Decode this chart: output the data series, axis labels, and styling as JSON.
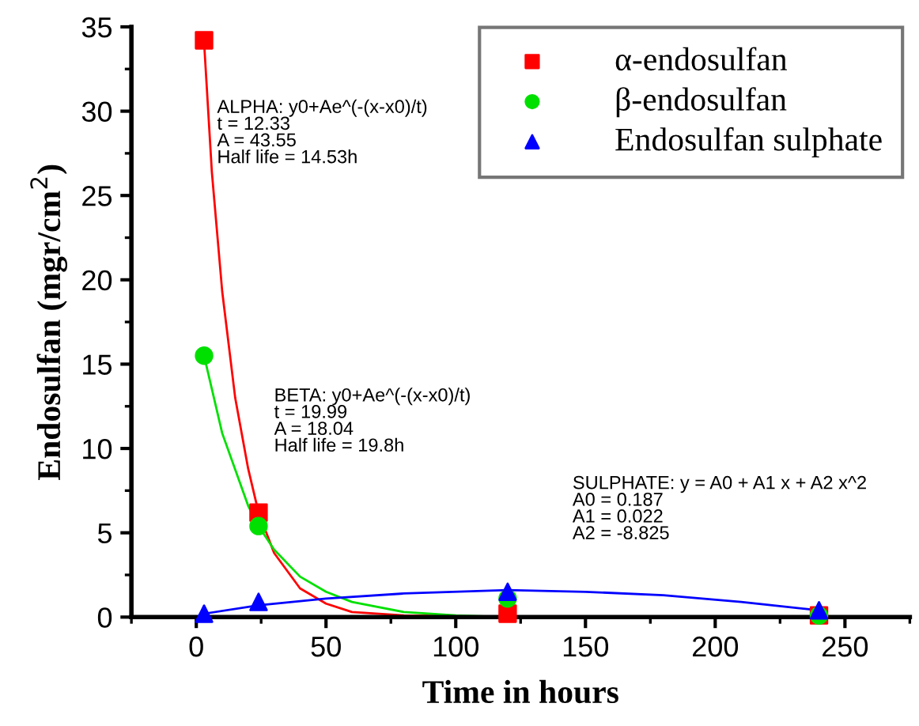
{
  "chart_data": {
    "type": "scatter",
    "xlabel": "Time in hours",
    "ylabel": "Endosulfan (mgr/cm$^{2}$)",
    "xlim": [
      -25,
      275
    ],
    "xticks": [
      0,
      50,
      100,
      150,
      200,
      250
    ],
    "ylim": [
      0,
      35
    ],
    "yticks": [
      0,
      5,
      10,
      15,
      20,
      25,
      30,
      35
    ],
    "grid": false,
    "legend": "top right",
    "annotations": [
      "ALPHA: y0+Ae^(-(x-x0)/t)\nt = 12.33\nA = 43.55\nHalf life = 14.53h",
      "BETA: y0+Ae^(-(x-x0)/t)\nt = 19.99\nA = 18.04\nHalf life = 19.8h",
      "SULPHATE: y = A0 + A1 x + A2 x^2\nA0 = 0.187\nA1 = 0.022\nA2 = -8.825"
    ],
    "series": [
      {
        "name": "α-endosulfan",
        "color": "#ff0000",
        "marker": "square",
        "x": [
          3,
          24,
          120,
          240
        ],
        "values": [
          34.2,
          6.2,
          0.2,
          0.1
        ]
      },
      {
        "name": "β-endosulfan",
        "color": "#00e000",
        "marker": "circle",
        "x": [
          3,
          24,
          120,
          240
        ],
        "values": [
          15.5,
          5.4,
          1.1,
          0.1
        ]
      },
      {
        "name": "Endosulfan sulphate",
        "color": "#0000ff",
        "marker": "triangle",
        "x": [
          3,
          24,
          120,
          240
        ],
        "values": [
          0.2,
          0.9,
          1.5,
          0.4
        ]
      },
      {
        "type": "line",
        "color": "#ff0000",
        "marker": "none",
        "x": [
          3,
          6,
          10,
          15,
          20,
          24,
          30,
          40,
          50,
          60,
          80,
          120,
          240
        ],
        "values": [
          34.1,
          26.4,
          19.3,
          13.0,
          8.8,
          6.2,
          3.8,
          1.7,
          0.8,
          0.3,
          0.1,
          0.0,
          0.0
        ]
      },
      {
        "type": "line",
        "color": "#00e000",
        "marker": "none",
        "x": [
          3,
          10,
          20,
          24,
          30,
          40,
          50,
          60,
          80,
          100,
          120,
          240
        ],
        "values": [
          15.5,
          10.9,
          6.6,
          5.4,
          4.0,
          2.4,
          1.5,
          0.9,
          0.3,
          0.1,
          0.0,
          0.0
        ]
      },
      {
        "type": "line",
        "color": "#0000ff",
        "marker": "none",
        "x": [
          3,
          24,
          50,
          80,
          120,
          150,
          180,
          210,
          240
        ],
        "values": [
          0.2,
          0.7,
          1.1,
          1.4,
          1.6,
          1.5,
          1.3,
          0.9,
          0.4
        ]
      }
    ]
  }
}
